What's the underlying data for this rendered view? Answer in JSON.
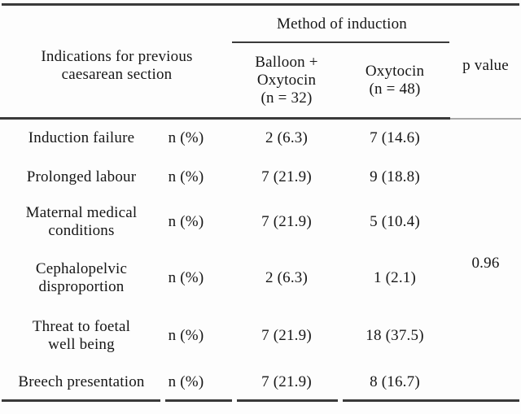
{
  "figure": {
    "background_color": "#fdfdfd",
    "rule_color": "#3a3a3a",
    "rule_color_light": "#ababab",
    "text_color": "#161616"
  },
  "table": {
    "header": {
      "indications_label": "Indications for previous\ncaesarean section",
      "method_group_label": "Method of induction",
      "balloon_label": "Balloon +\nOxytocin\n(n = 32)",
      "oxytocin_label": "Oxytocin\n(n = 48)",
      "p_value_label": "p value"
    },
    "rows": [
      {
        "indication": "Induction failure",
        "measure": "n (%)",
        "balloon_oxytocin": "2 (6.3)",
        "oxytocin": "7 (14.6)"
      },
      {
        "indication": "Prolonged labour",
        "measure": "n (%)",
        "balloon_oxytocin": "7 (21.9)",
        "oxytocin": "9 (18.8)"
      },
      {
        "indication": "Maternal medical\nconditions",
        "measure": "n (%)",
        "balloon_oxytocin": "7 (21.9)",
        "oxytocin": "5 (10.4)"
      },
      {
        "indication": "Cephalopelvic\ndisproportion",
        "measure": "n (%)",
        "balloon_oxytocin": "2 (6.3)",
        "oxytocin": "1 (2.1)"
      },
      {
        "indication": "Threat to foetal\nwell being",
        "measure": "n (%)",
        "balloon_oxytocin": "7 (21.9)",
        "oxytocin": "18 (37.5)"
      },
      {
        "indication": "Breech presentation",
        "measure": "n (%)",
        "balloon_oxytocin": "7 (21.9)",
        "oxytocin": "8 (16.7)"
      }
    ],
    "p_value": "0.96"
  }
}
